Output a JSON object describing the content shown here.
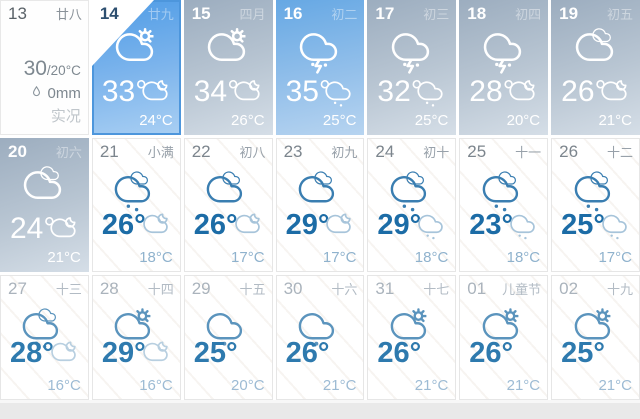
{
  "app": {
    "name": "weather-month-calendar",
    "footer_preview": ""
  },
  "colors": {
    "today_accent": "#4d96dc",
    "today_panel_top": "#4f9ce6",
    "past_panel_top": "#9cadbf",
    "past_blue_panel_top": "#66a8e4",
    "future_temp_blue": "#1c6ca6",
    "grid_line": "#e6e6e6",
    "footer_strip": "#e9e9e9"
  },
  "grid": {
    "cells": [
      {
        "day": "13",
        "lunar": "廿八",
        "variant": "report",
        "report": {
          "temp_big": "30",
          "temp_small": "/20°C",
          "precip": "0mm",
          "status": "实况"
        }
      },
      {
        "day": "14",
        "lunar": "廿九",
        "variant": "today",
        "icon_day": "partly-sunny",
        "temp_high": "33°",
        "icon_night": "cloud-moon",
        "temp_low": "24°C"
      },
      {
        "day": "15",
        "lunar": "四月",
        "variant": "past",
        "icon_day": "partly-sunny",
        "temp_high": "34°",
        "icon_night": "cloud-moon",
        "temp_low": "26°C"
      },
      {
        "day": "16",
        "lunar": "初二",
        "variant": "past-blue",
        "icon_day": "thunderstorm",
        "temp_high": "35°",
        "icon_night": "rain-small",
        "temp_low": "25°C"
      },
      {
        "day": "17",
        "lunar": "初三",
        "variant": "past",
        "icon_day": "thunderstorm",
        "temp_high": "32°",
        "icon_night": "rain-small",
        "temp_low": "25°C"
      },
      {
        "day": "18",
        "lunar": "初四",
        "variant": "past",
        "icon_day": "thunderstorm",
        "temp_high": "28°",
        "icon_night": "cloud-moon",
        "temp_low": "20°C"
      },
      {
        "day": "19",
        "lunar": "初五",
        "variant": "past",
        "icon_day": "cloudy",
        "temp_high": "26°",
        "icon_night": "cloud-moon",
        "temp_low": "21°C"
      },
      {
        "day": "20",
        "lunar": "初六",
        "variant": "past",
        "icon_day": "cloudy",
        "temp_high": "24°",
        "icon_night": "cloud-moon",
        "temp_low": "21°C"
      },
      {
        "day": "21",
        "lunar": "小满",
        "variant": "future",
        "icon_day": "rain",
        "temp_high": "26°",
        "icon_night": "cloud-moon",
        "temp_low": "18°C"
      },
      {
        "day": "22",
        "lunar": "初八",
        "variant": "future",
        "icon_day": "cloudy",
        "temp_high": "26°",
        "icon_night": "cloud-moon",
        "temp_low": "17°C"
      },
      {
        "day": "23",
        "lunar": "初九",
        "variant": "future",
        "icon_day": "cloudy",
        "temp_high": "29°",
        "icon_night": "cloud-moon",
        "temp_low": "17°C"
      },
      {
        "day": "24",
        "lunar": "初十",
        "variant": "future",
        "icon_day": "rain",
        "temp_high": "29°",
        "icon_night": "rain-small",
        "temp_low": "18°C"
      },
      {
        "day": "25",
        "lunar": "十一",
        "variant": "future",
        "icon_day": "rain",
        "temp_high": "23°",
        "icon_night": "rain-small",
        "temp_low": "18°C"
      },
      {
        "day": "26",
        "lunar": "十二",
        "variant": "future",
        "icon_day": "rain",
        "temp_high": "25°",
        "icon_night": "rain-small",
        "temp_low": "17°C"
      },
      {
        "day": "27",
        "lunar": "十三",
        "variant": "future-far",
        "icon_day": "rain",
        "temp_high": "28°",
        "icon_night": "cloud-moon",
        "temp_low": "16°C"
      },
      {
        "day": "28",
        "lunar": "十四",
        "variant": "future-far",
        "icon_day": "partly-sunny",
        "temp_high": "29°",
        "icon_night": "cloud-moon",
        "temp_low": "16°C"
      },
      {
        "day": "29",
        "lunar": "十五",
        "variant": "future-far",
        "icon_day": "light-rain",
        "temp_high": "25°",
        "icon_night": "",
        "temp_low": "20°C"
      },
      {
        "day": "30",
        "lunar": "十六",
        "variant": "future-far",
        "icon_day": "light-rain",
        "temp_high": "26°",
        "icon_night": "",
        "temp_low": "21°C"
      },
      {
        "day": "31",
        "lunar": "十七",
        "variant": "future-far",
        "icon_day": "partly-sunny",
        "temp_high": "26°",
        "icon_night": "",
        "temp_low": "21°C"
      },
      {
        "day": "01",
        "lunar": "儿童节",
        "variant": "future-far",
        "icon_day": "partly-sunny",
        "temp_high": "26°",
        "icon_night": "",
        "temp_low": "21°C"
      },
      {
        "day": "02",
        "lunar": "十九",
        "variant": "future-far",
        "icon_day": "partly-sunny",
        "temp_high": "25°",
        "icon_night": "",
        "temp_low": "21°C"
      }
    ]
  }
}
